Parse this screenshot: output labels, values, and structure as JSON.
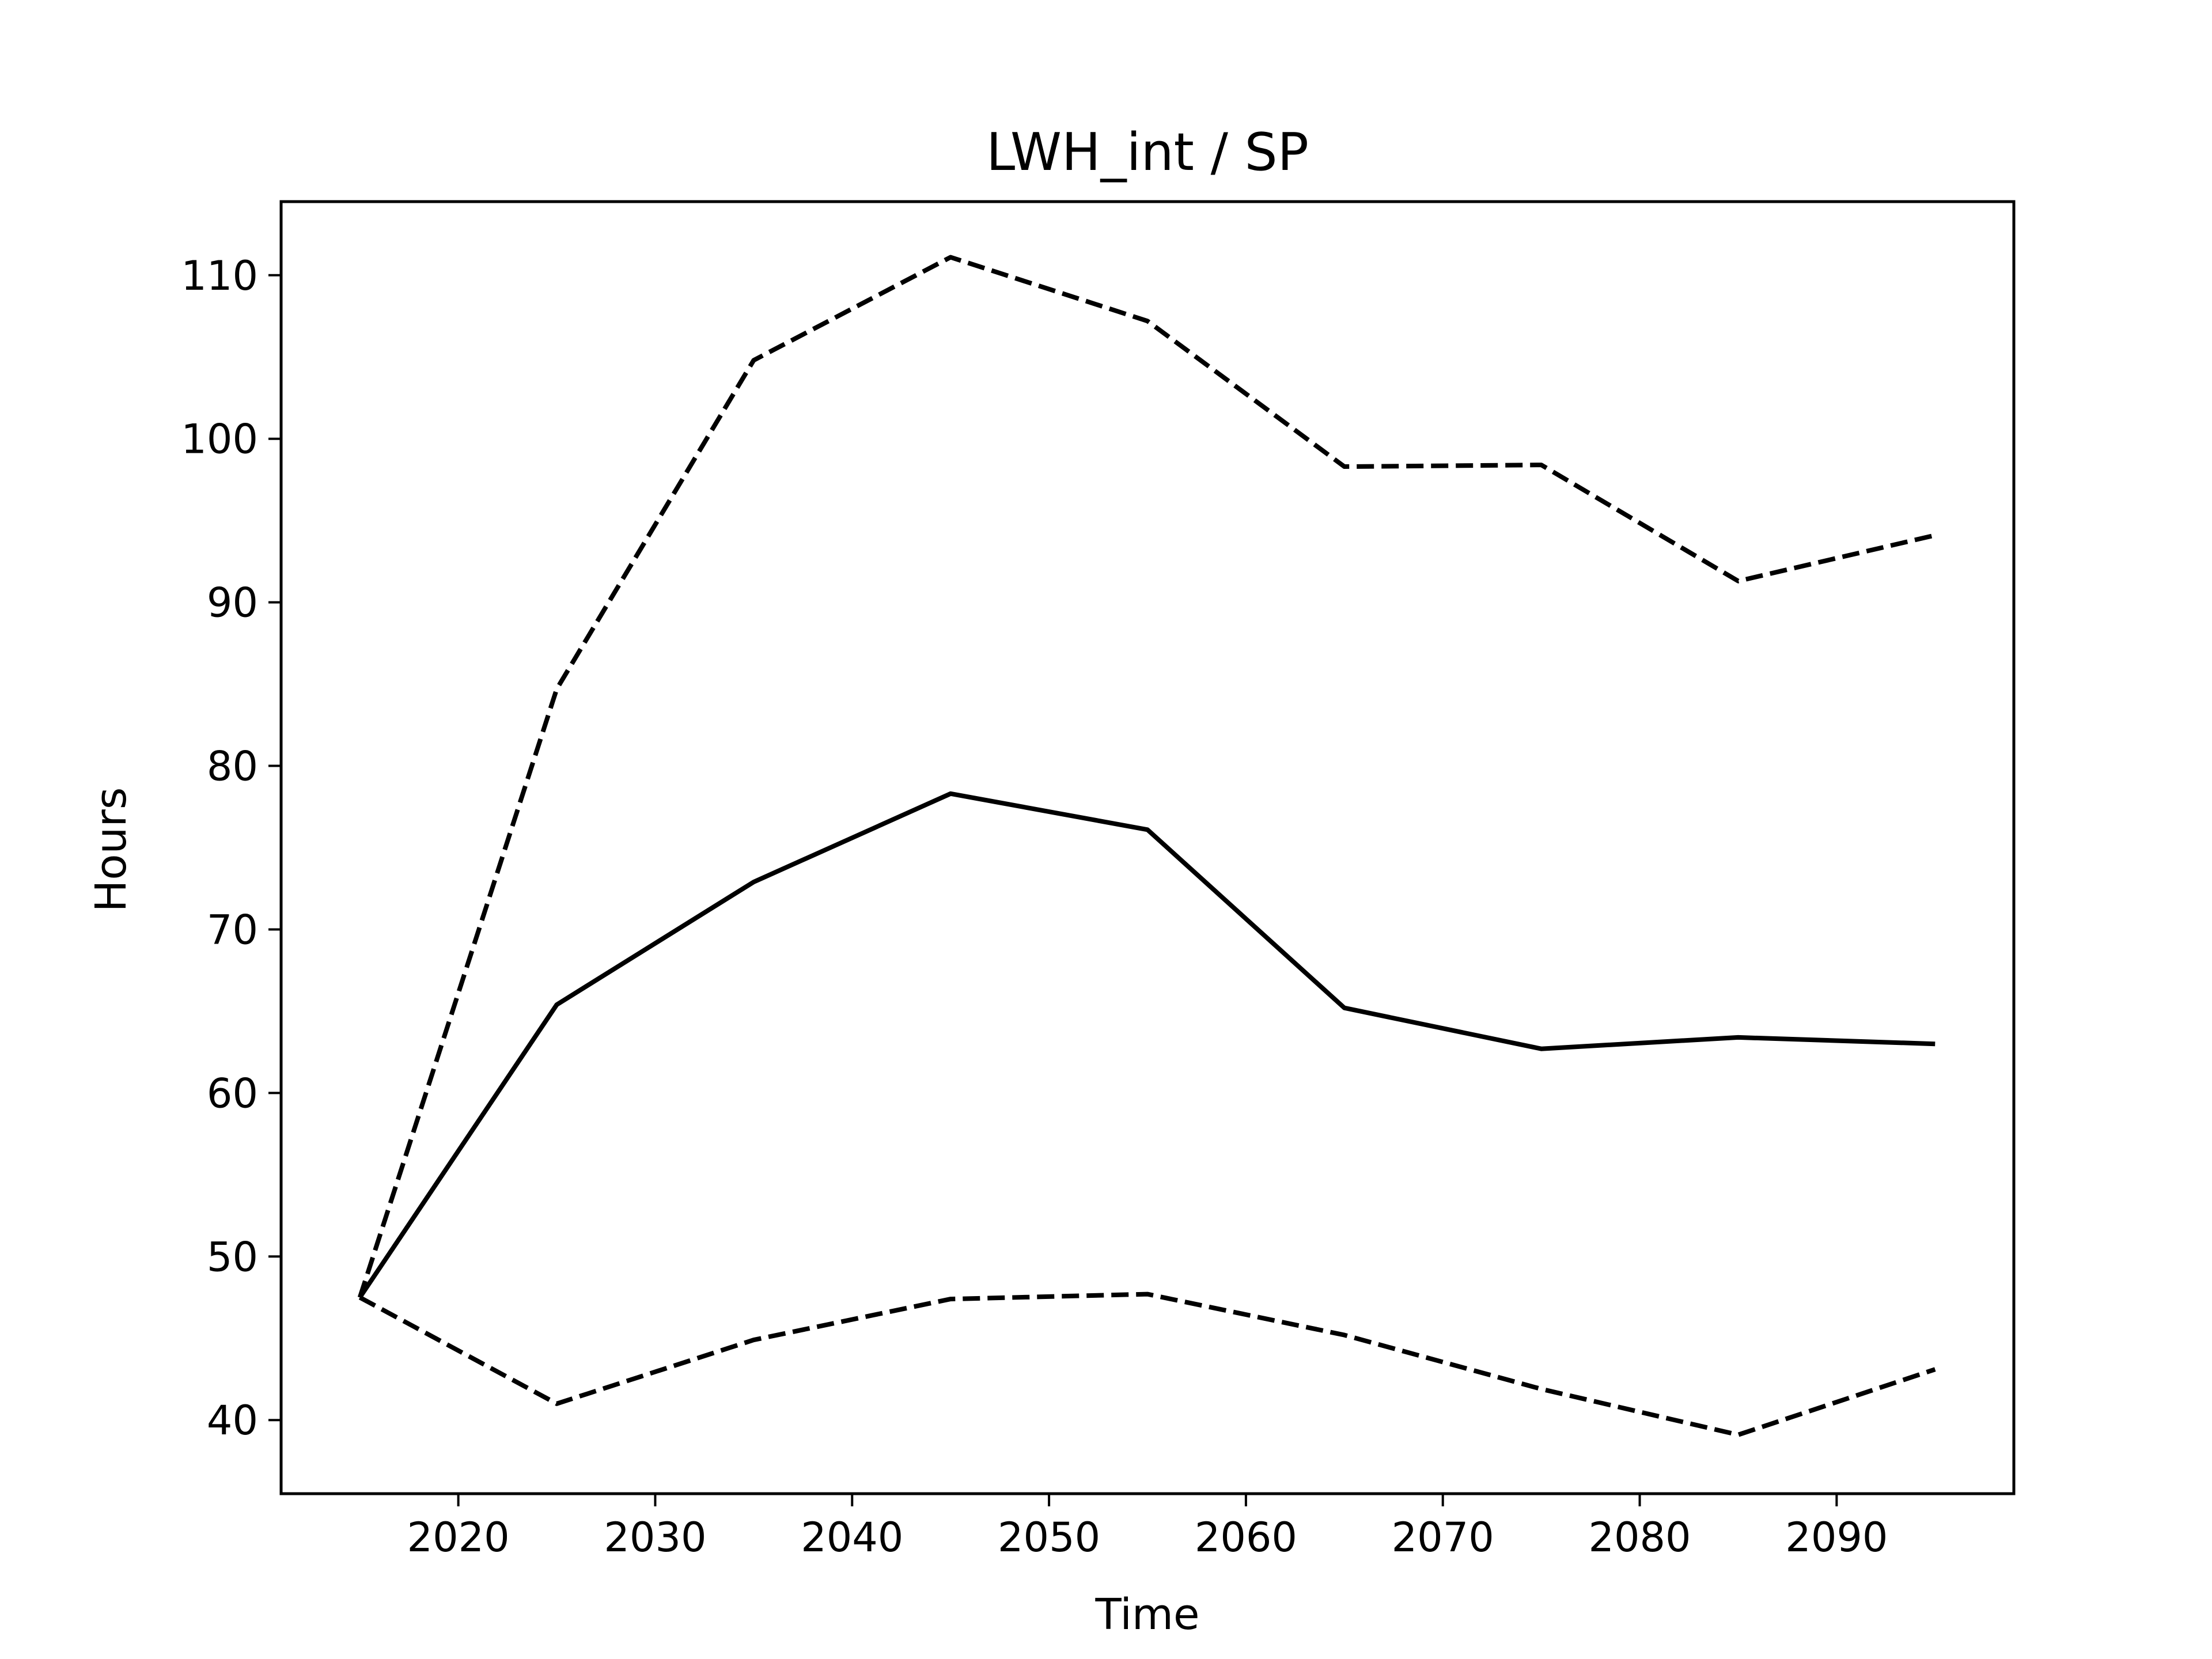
{
  "chart_data": {
    "type": "line",
    "title": "LWH_int / SP",
    "xlabel": "Time",
    "ylabel": "Hours",
    "xlim": [
      2011,
      2099
    ],
    "ylim": [
      35.5,
      114.5
    ],
    "xticks": [
      2020,
      2030,
      2040,
      2050,
      2060,
      2070,
      2080,
      2090
    ],
    "yticks": [
      40,
      50,
      60,
      70,
      80,
      90,
      100,
      110
    ],
    "grid": false,
    "x": [
      2015,
      2025,
      2035,
      2045,
      2055,
      2065,
      2075,
      2085,
      2095
    ],
    "series": [
      {
        "style": "solid",
        "color": "#000000",
        "values": [
          47.5,
          65.4,
          72.9,
          78.3,
          76.1,
          65.2,
          62.7,
          63.4,
          63.0
        ]
      },
      {
        "style": "dashed",
        "color": "#000000",
        "values": [
          47.5,
          84.7,
          104.8,
          111.1,
          107.2,
          98.3,
          98.4,
          91.3,
          94.1
        ]
      },
      {
        "style": "dashed",
        "color": "#000000",
        "values": [
          47.5,
          41.0,
          44.9,
          47.4,
          47.7,
          45.2,
          41.9,
          39.1,
          43.1
        ]
      }
    ]
  }
}
